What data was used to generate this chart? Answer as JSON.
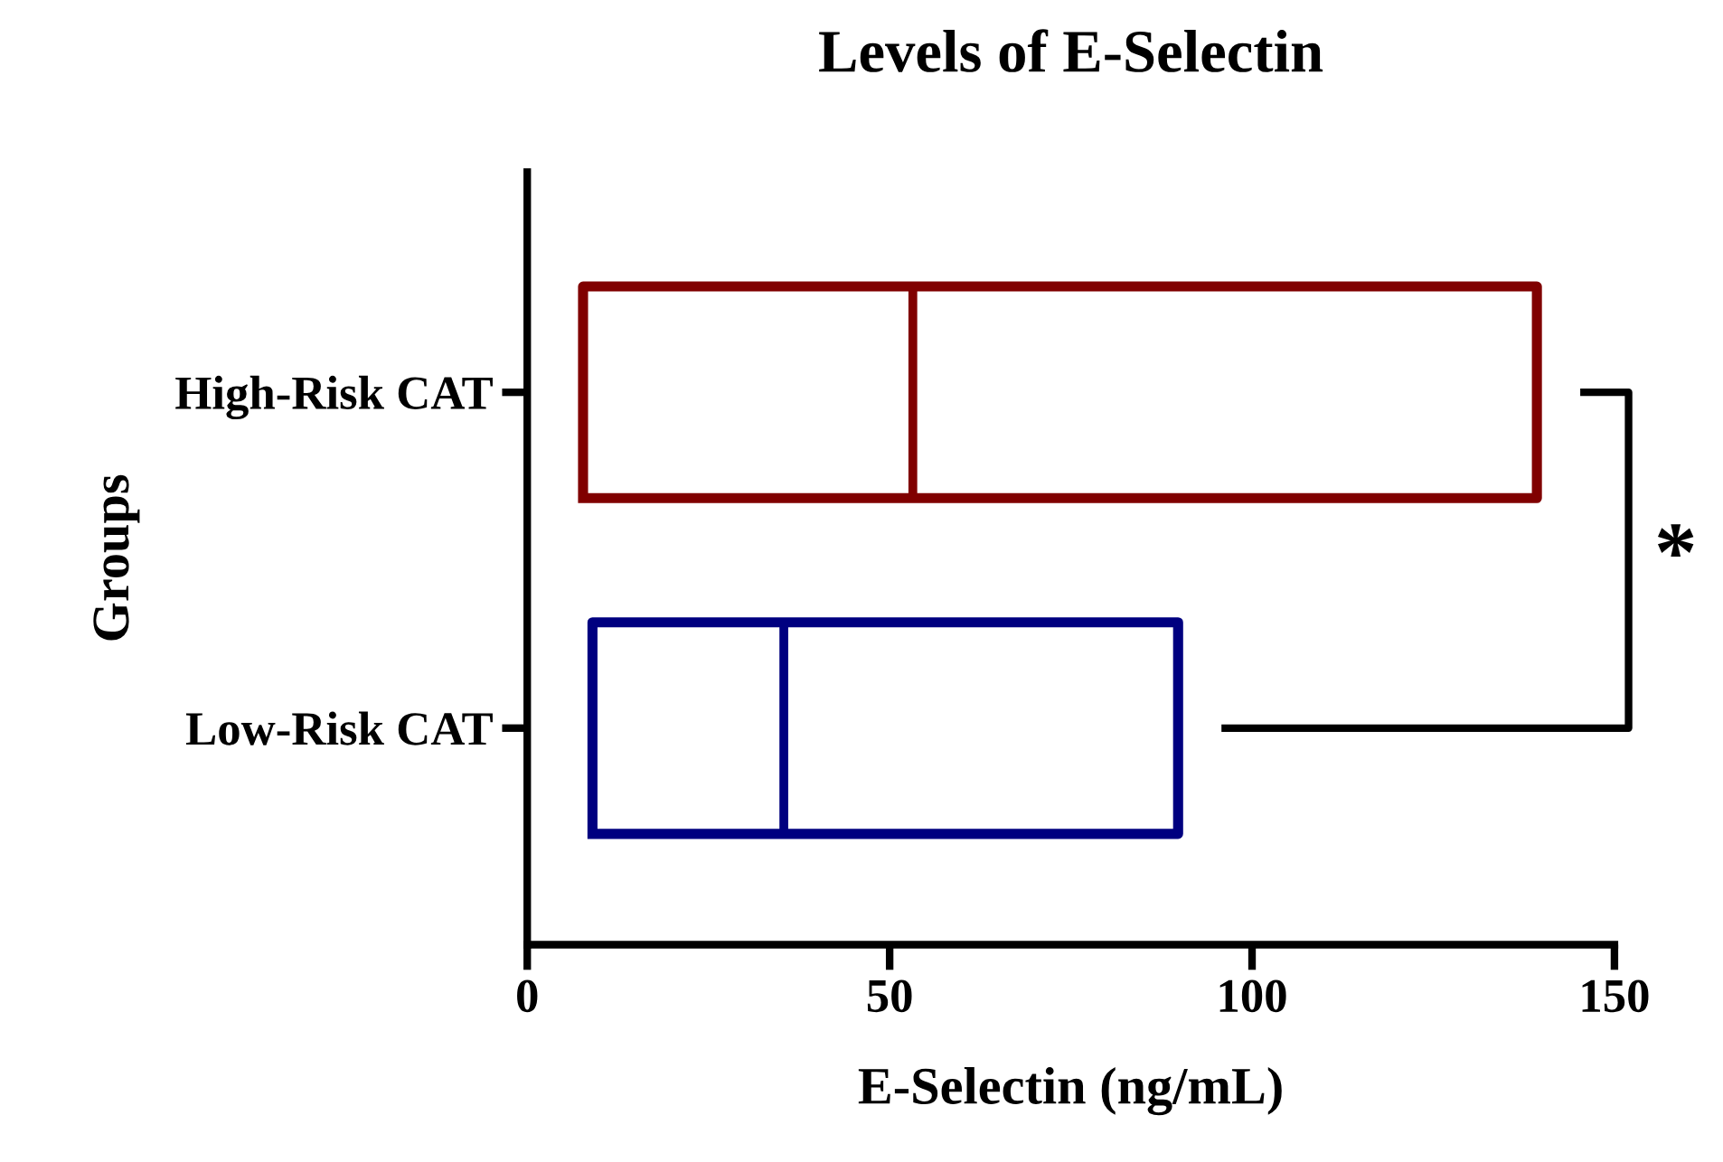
{
  "chart_data": {
    "type": "box",
    "title": "Levels of E-Selectin",
    "xlabel": "E-Selectin (ng/mL)",
    "ylabel": "Groups",
    "orientation": "horizontal",
    "categories": [
      "High-Risk CAT",
      "Low-Risk CAT"
    ],
    "colors": [
      "#800000",
      "#000080"
    ],
    "boxes": [
      {
        "low": 7.7,
        "q1": 7.7,
        "median": 53.2,
        "q3": 139.3,
        "high": 139.3
      },
      {
        "low": 9.0,
        "q1": 9.0,
        "median": 35.4,
        "q3": 89.8,
        "high": 89.8
      }
    ],
    "xlim": [
      0,
      150
    ],
    "xticks": [
      0,
      50,
      100,
      150
    ],
    "grid": false,
    "annotations": [
      "*"
    ]
  }
}
